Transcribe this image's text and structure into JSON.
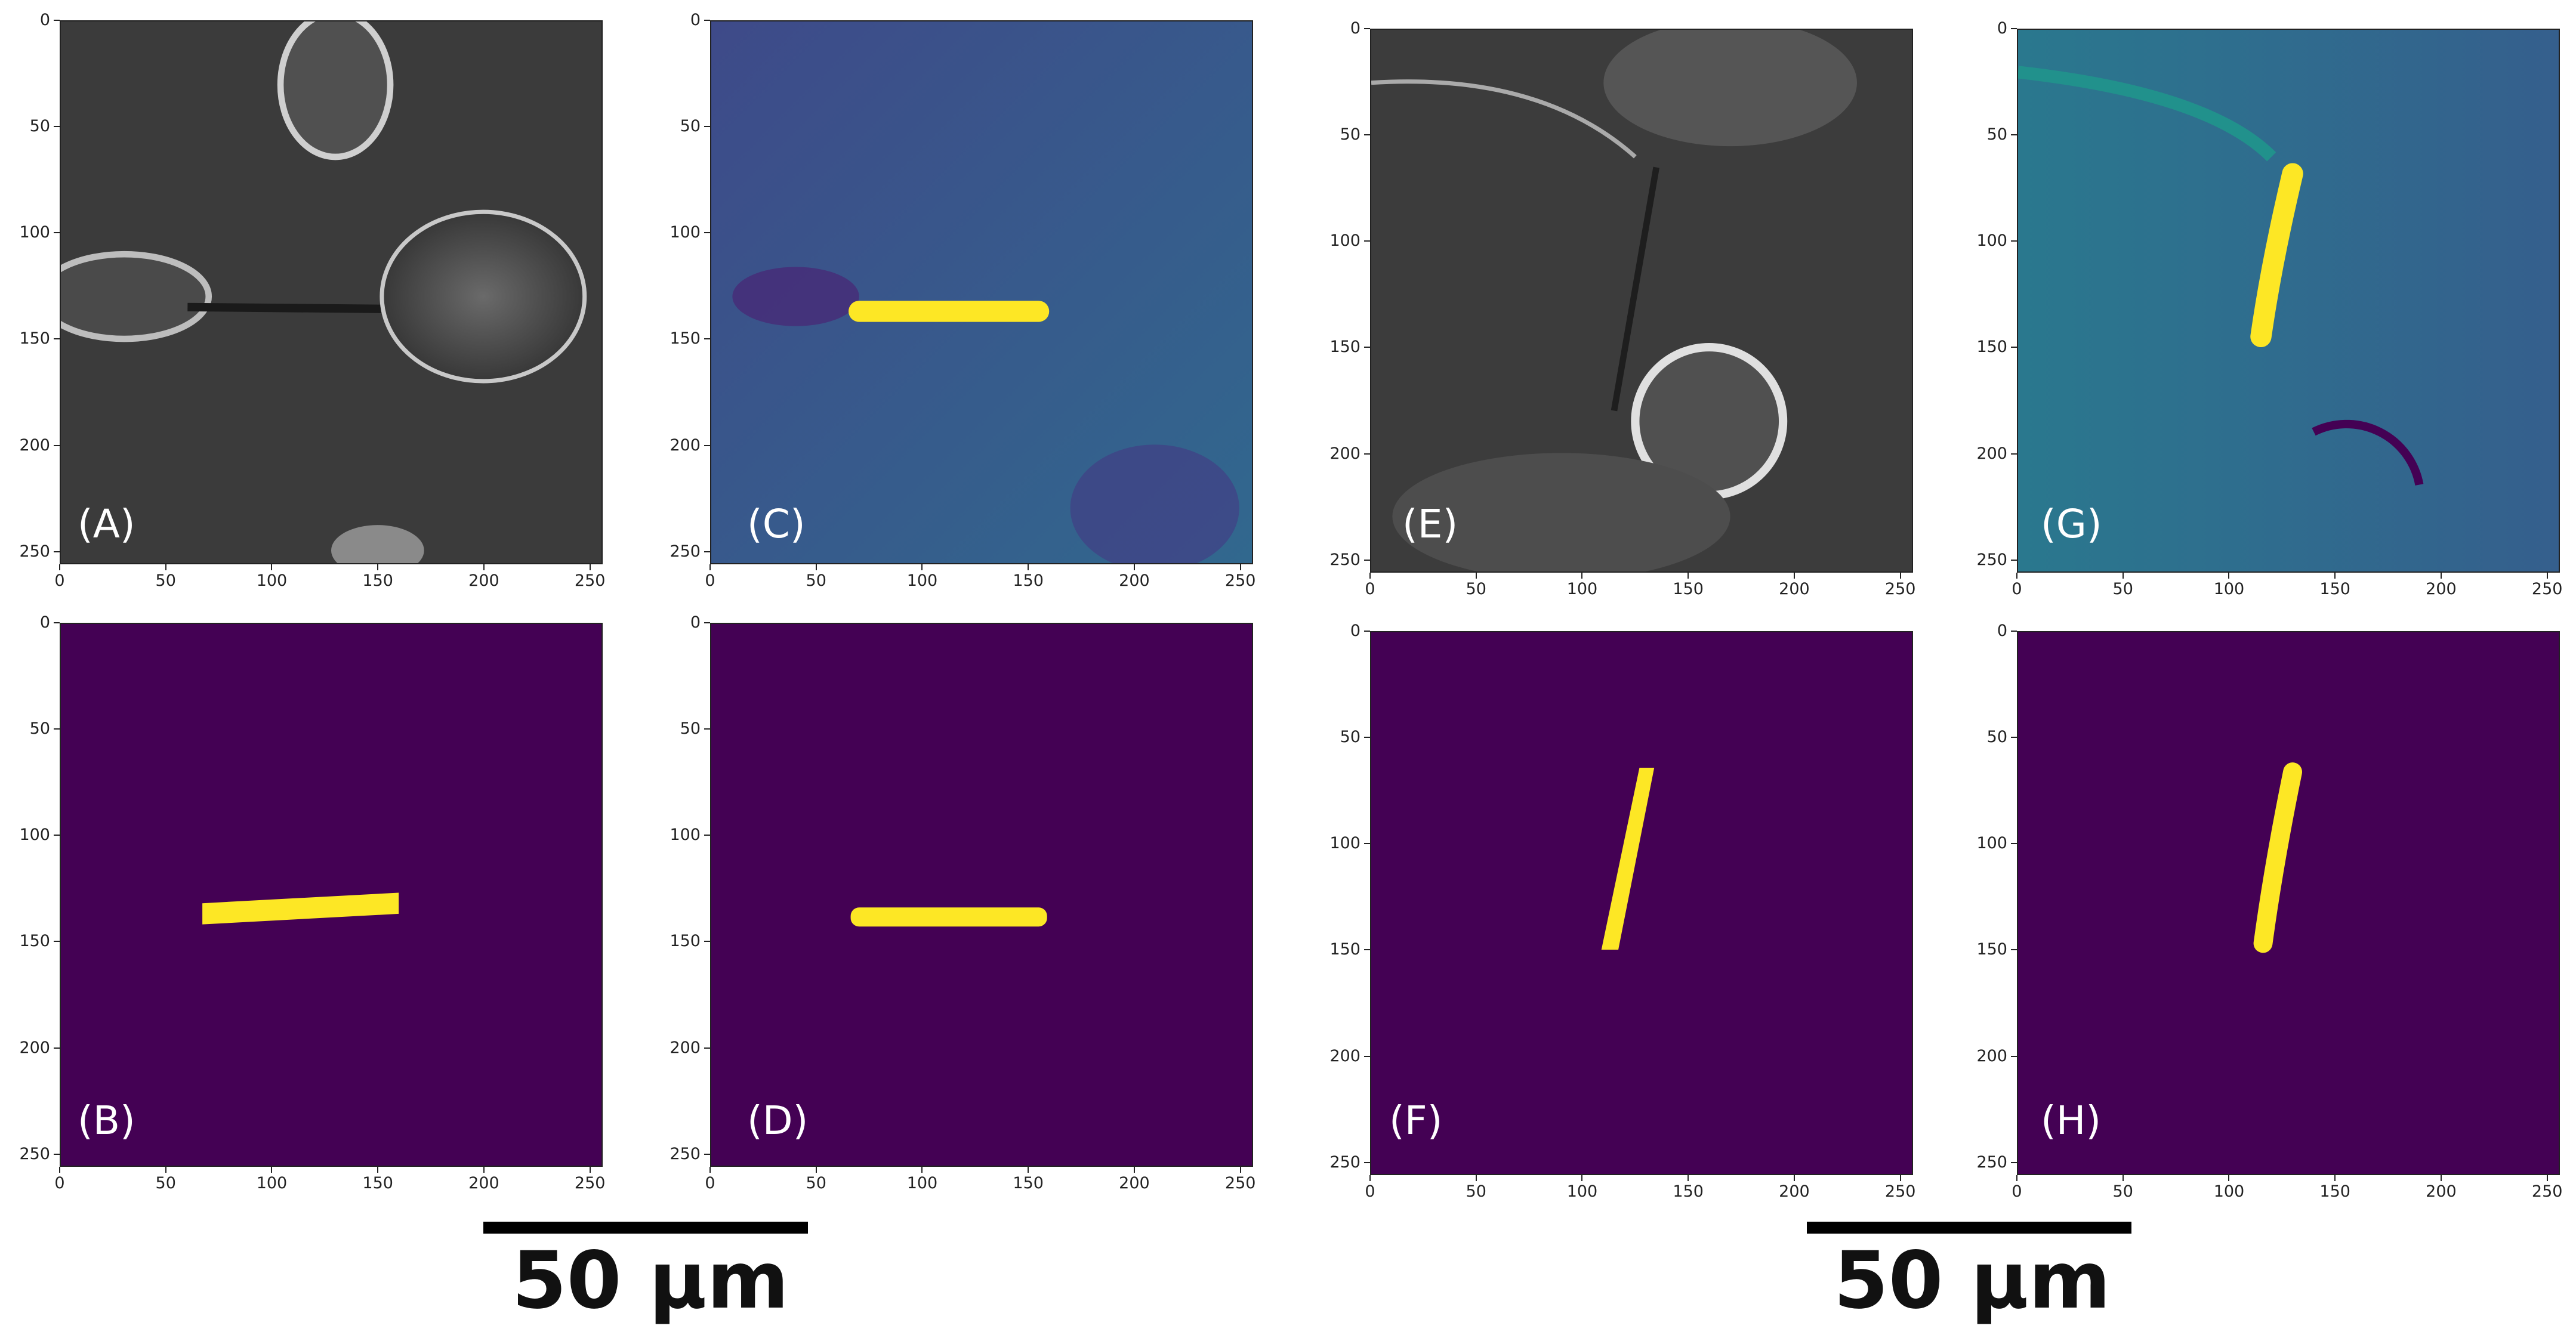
{
  "figure": {
    "panels": [
      {
        "id": "A",
        "label": "(A)",
        "kind": "micrograph"
      },
      {
        "id": "B",
        "label": "(B)",
        "kind": "mask"
      },
      {
        "id": "C",
        "label": "(C)",
        "kind": "heatmap"
      },
      {
        "id": "D",
        "label": "(D)",
        "kind": "mask"
      },
      {
        "id": "E",
        "label": "(E)",
        "kind": "micrograph"
      },
      {
        "id": "F",
        "label": "(F)",
        "kind": "mask"
      },
      {
        "id": "G",
        "label": "(G)",
        "kind": "heatmap"
      },
      {
        "id": "H",
        "label": "(H)",
        "kind": "mask"
      }
    ],
    "axis_ticks": {
      "x": [
        "0",
        "50",
        "100",
        "150",
        "200",
        "250"
      ],
      "y": [
        "0",
        "50",
        "100",
        "150",
        "200",
        "250"
      ]
    },
    "scale_bars": [
      {
        "label": "50 µm"
      },
      {
        "label": "50 µm"
      }
    ],
    "colors": {
      "mask_background": "#440154",
      "mask_foreground": "#fde725",
      "heatmap_background": "#2f5e8e",
      "micrograph_background": "#3a3a3a"
    }
  }
}
